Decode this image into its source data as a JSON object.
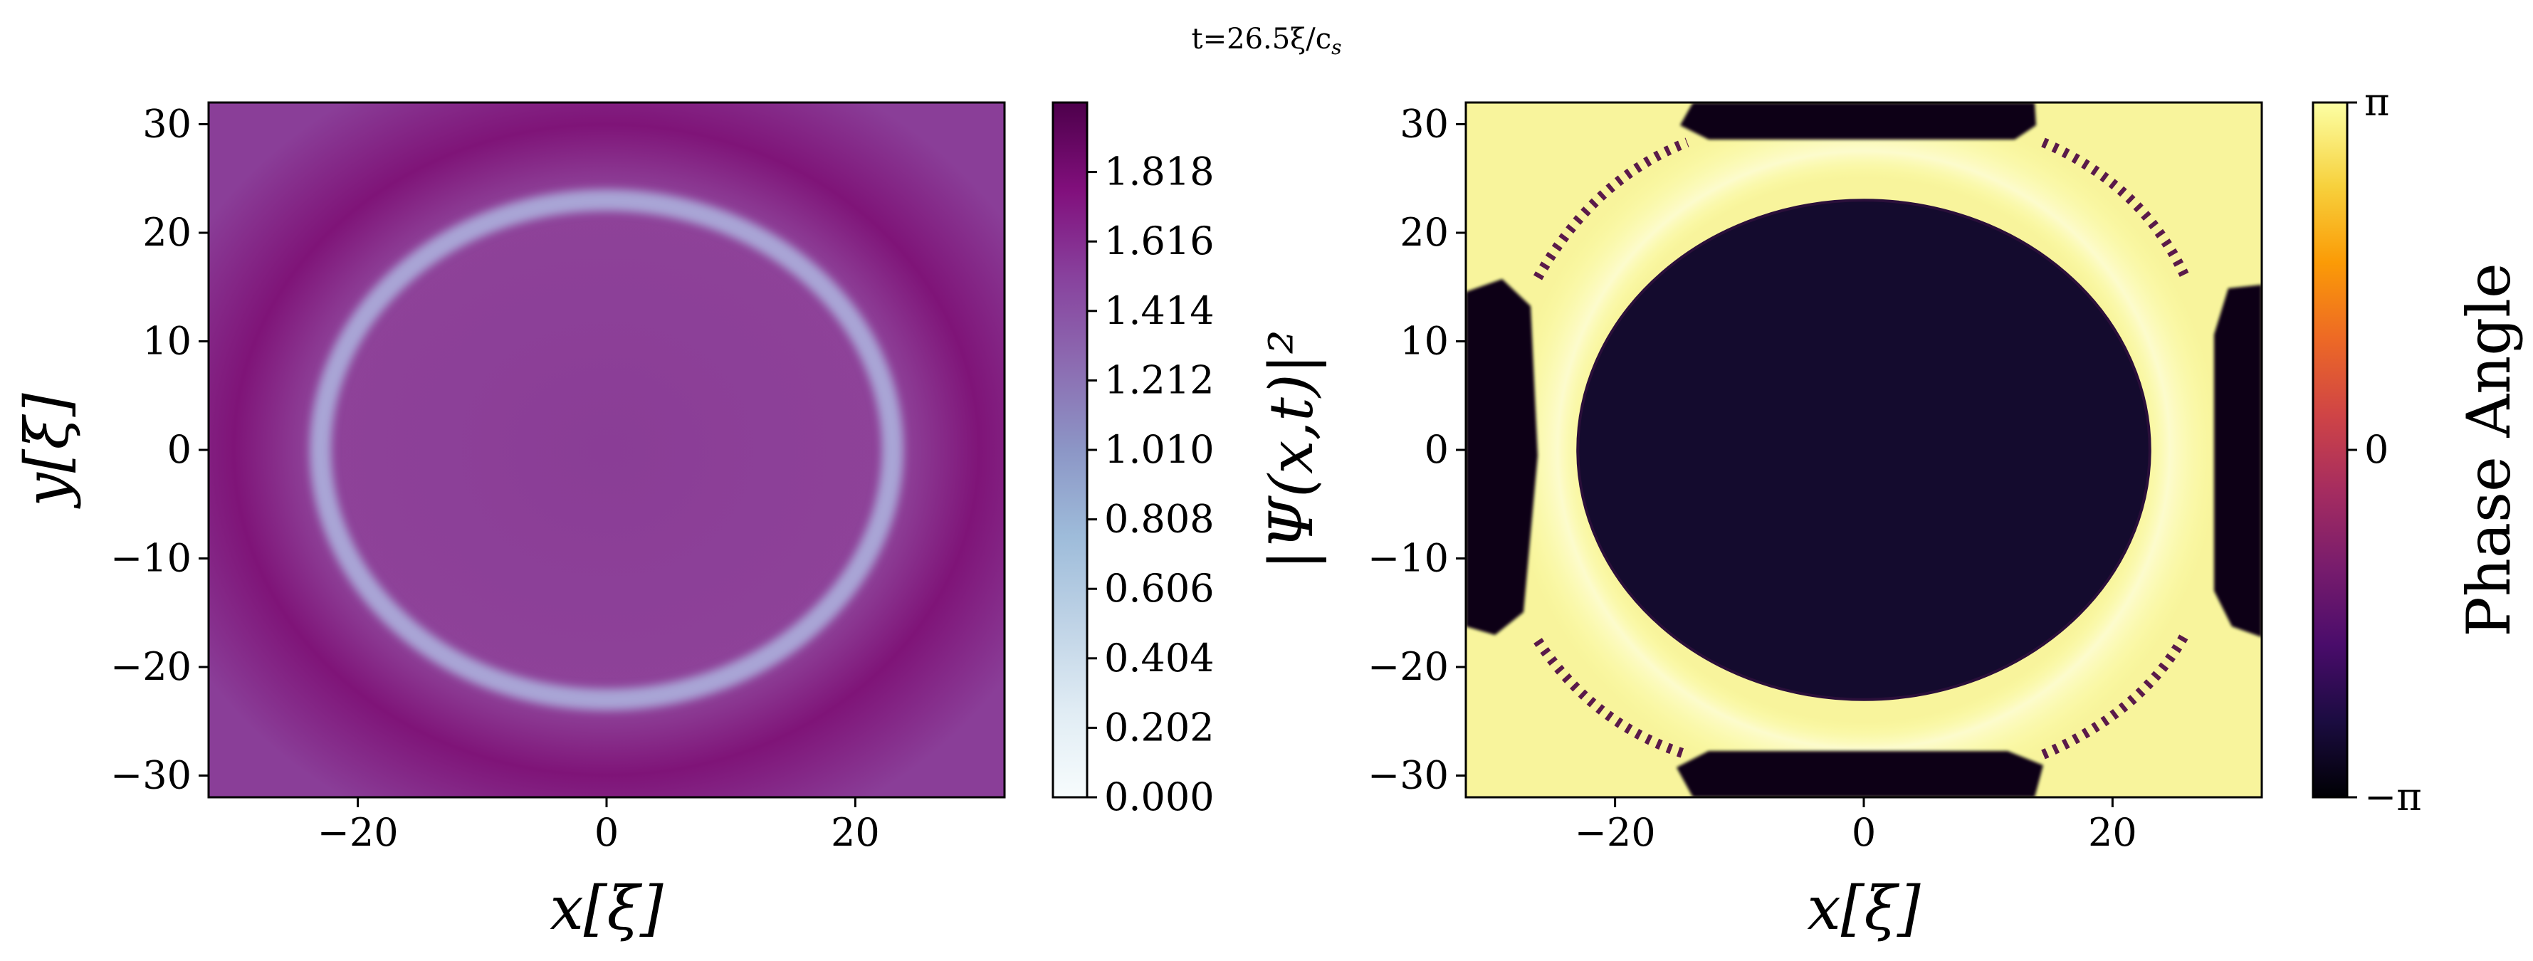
{
  "suptitle": "t=26.5ξ/c",
  "suptitle_sub": "s",
  "chart_data": [
    {
      "type": "heatmap",
      "title": "",
      "xlabel": "x[ξ]",
      "ylabel": "y[ξ]",
      "xlim": [
        -32,
        32
      ],
      "ylim": [
        -32,
        32
      ],
      "xticks": [
        -20,
        0,
        20
      ],
      "yticks": [
        30,
        20,
        10,
        0,
        -10,
        -20,
        -30
      ],
      "xtick_labels": [
        "−20",
        "0",
        "20"
      ],
      "ytick_labels": [
        "30",
        "20",
        "10",
        "0",
        "−10",
        "−20",
        "−30"
      ],
      "colormap": "BuPu",
      "background_value": 1.7,
      "features": [
        {
          "kind": "ring",
          "center": [
            0,
            0
          ],
          "radius_x": 23,
          "radius_y": 23,
          "value": 0.95
        }
      ],
      "colorbar": {
        "label": "|Ψ(x,t)|²",
        "range": [
          0,
          2.02
        ],
        "ticks": [
          0.0,
          0.202,
          0.404,
          0.606,
          0.808,
          1.01,
          1.212,
          1.414,
          1.616,
          1.818
        ],
        "tick_labels": [
          "0.000",
          "0.202",
          "0.404",
          "0.606",
          "0.808",
          "1.010",
          "1.212",
          "1.414",
          "1.616",
          "1.818"
        ],
        "colors": [
          "#f7fcfd",
          "#e0ecf4",
          "#bfd3e6",
          "#9ebcda",
          "#8c96c6",
          "#8c6bb1",
          "#88419d",
          "#810f7c",
          "#4d004b"
        ]
      }
    },
    {
      "type": "heatmap",
      "title": "",
      "xlabel": "x[ξ]",
      "ylabel": "",
      "xlim": [
        -32,
        32
      ],
      "ylim": [
        -32,
        32
      ],
      "xticks": [
        -20,
        0,
        20
      ],
      "yticks": [
        30,
        20,
        10,
        0,
        -10,
        -20,
        -30
      ],
      "xtick_labels": [
        "−20",
        "0",
        "20"
      ],
      "ytick_labels": [
        "30",
        "20",
        "10",
        "0",
        "−10",
        "−20",
        "−30"
      ],
      "colormap": "inferno",
      "background_value": "π",
      "features": [
        {
          "kind": "disk",
          "center": [
            0,
            0
          ],
          "radius_x": 23,
          "radius_y": 23,
          "value": "−π"
        },
        {
          "kind": "halo",
          "center": [
            0,
            0
          ],
          "radius": 26.5,
          "value": "near π (lighter)"
        },
        {
          "kind": "dark-patch",
          "location": "top",
          "value": "−π"
        },
        {
          "kind": "dark-patch",
          "location": "bottom",
          "value": "−π"
        },
        {
          "kind": "dark-patch",
          "location": "left",
          "value": "−π"
        },
        {
          "kind": "dark-patch",
          "location": "right",
          "value": "−π"
        }
      ],
      "colorbar": {
        "label": "Phase Angle",
        "range": [
          "−π",
          "π"
        ],
        "ticks": [
          "π",
          "0",
          "−π"
        ],
        "tick_labels": [
          "π",
          "0",
          "−π"
        ],
        "colors": [
          "#000004",
          "#1b0c41",
          "#4a0c6b",
          "#781c6d",
          "#a52c60",
          "#cf4446",
          "#ed6925",
          "#fb9b06",
          "#f7d13d",
          "#fcffa4"
        ]
      }
    }
  ]
}
